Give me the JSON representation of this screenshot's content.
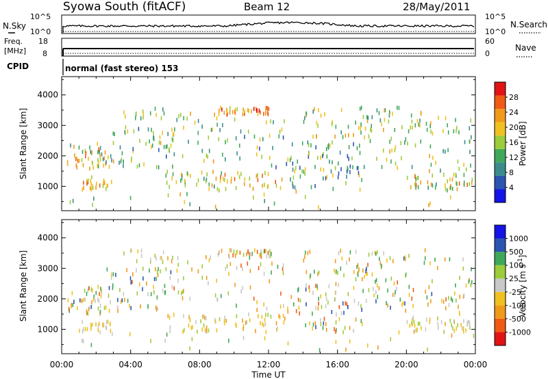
{
  "header": {
    "station": "Syowa South (fitACF)",
    "beam": "Beam 12",
    "date": "28/May/2011"
  },
  "noise_panel": {
    "left_label": "N.Sky",
    "right_label": "N.Search",
    "tick_top": "10^5",
    "tick_bottom": "10^0"
  },
  "freq_panel": {
    "left_label_1": "Freq.",
    "left_label_2": "[MHz]",
    "right_label": "Nave",
    "left_ticks": [
      "18",
      "8"
    ],
    "right_ticks": [
      "60",
      "0"
    ]
  },
  "cpid": {
    "label": "CPID",
    "text": "normal (fast stereo) 153"
  },
  "colors": {
    "power": [
      "#1414e6",
      "#2b55b0",
      "#3a8c8c",
      "#3fa85a",
      "#9ccc3a",
      "#f0c020",
      "#f09a1a",
      "#f05a14",
      "#e01414"
    ],
    "velocity": [
      "#e01414",
      "#f05a14",
      "#f09a1a",
      "#f0c020",
      "#c8c8c8",
      "#9ccc3a",
      "#3fa85a",
      "#2b55b0",
      "#1414e6"
    ]
  },
  "chart_data": [
    {
      "type": "heatmap",
      "name": "power",
      "ylabel": "Slant Range [km]",
      "ylim": [
        200,
        4600
      ],
      "y_ticks": [
        "1000",
        "2000",
        "3000",
        "4000"
      ],
      "xlim_hours": [
        0,
        24
      ],
      "cbar_label": "Power [dB]",
      "cbar_range": [
        0,
        32
      ],
      "cbar_ticks": [
        "4",
        "8",
        "12",
        "16",
        "20",
        "24",
        "28"
      ],
      "clusters": [
        {
          "t": [
            0.3,
            2.5
          ],
          "r": [
            1500,
            2400
          ],
          "v": [
            8,
            28
          ],
          "n": 45
        },
        {
          "t": [
            1.0,
            3.0
          ],
          "r": [
            900,
            1300
          ],
          "v": [
            14,
            26
          ],
          "n": 25
        },
        {
          "t": [
            2.5,
            6.5
          ],
          "r": [
            1600,
            3000
          ],
          "v": [
            6,
            22
          ],
          "n": 60
        },
        {
          "t": [
            3.5,
            6.0
          ],
          "r": [
            3200,
            3600
          ],
          "v": [
            8,
            20
          ],
          "n": 15
        },
        {
          "t": [
            6.0,
            9.0
          ],
          "r": [
            900,
            1500
          ],
          "v": [
            10,
            24
          ],
          "n": 30
        },
        {
          "t": [
            6.0,
            9.0
          ],
          "r": [
            1800,
            3400
          ],
          "v": [
            6,
            22
          ],
          "n": 30
        },
        {
          "t": [
            8.8,
            12.2
          ],
          "r": [
            3350,
            3600
          ],
          "v": [
            16,
            30
          ],
          "n": 40
        },
        {
          "t": [
            9.0,
            13.0
          ],
          "r": [
            900,
            1500
          ],
          "v": [
            14,
            28
          ],
          "n": 35
        },
        {
          "t": [
            9.0,
            13.0
          ],
          "r": [
            1600,
            3200
          ],
          "v": [
            6,
            20
          ],
          "n": 35
        },
        {
          "t": [
            13.0,
            17.5
          ],
          "r": [
            900,
            2500
          ],
          "v": [
            4,
            20
          ],
          "n": 80
        },
        {
          "t": [
            14.0,
            18.0
          ],
          "r": [
            2600,
            3600
          ],
          "v": [
            10,
            24
          ],
          "n": 40
        },
        {
          "t": [
            17.5,
            21.5
          ],
          "r": [
            1600,
            3600
          ],
          "v": [
            8,
            22
          ],
          "n": 60
        },
        {
          "t": [
            20.0,
            23.8
          ],
          "r": [
            900,
            1400
          ],
          "v": [
            10,
            26
          ],
          "n": 45
        },
        {
          "t": [
            21.0,
            23.8
          ],
          "r": [
            1500,
            3300
          ],
          "v": [
            8,
            24
          ],
          "n": 35
        },
        {
          "t": [
            0.0,
            24.0
          ],
          "r": [
            300,
            900
          ],
          "v": [
            8,
            24
          ],
          "n": 25
        }
      ]
    },
    {
      "type": "heatmap",
      "name": "velocity",
      "ylabel": "Slant Range [km]",
      "ylim": [
        200,
        4600
      ],
      "y_ticks": [
        "1000",
        "2000",
        "3000",
        "4000"
      ],
      "xlabel": "Time UT",
      "x_ticks": [
        "00:00",
        "04:00",
        "08:00",
        "12:00",
        "16:00",
        "20:00",
        "00:00"
      ],
      "xlim_hours": [
        0,
        24
      ],
      "cbar_label": "Velocity",
      "cbar_unit": "[m s",
      "cbar_exp": "-1",
      "cbar_unit_end": "]",
      "cbar_range": [
        -1200,
        1200
      ],
      "cbar_ticks": [
        "-1000",
        "-500",
        "-100",
        "-25",
        "25",
        "100",
        "500",
        "1000"
      ],
      "clusters": [
        {
          "t": [
            0.3,
            2.5
          ],
          "r": [
            1500,
            2400
          ],
          "v": [
            -800,
            800
          ],
          "n": 45
        },
        {
          "t": [
            1.0,
            3.0
          ],
          "r": [
            900,
            1300
          ],
          "v": [
            -400,
            100
          ],
          "n": 25
        },
        {
          "t": [
            2.5,
            6.5
          ],
          "r": [
            1600,
            3000
          ],
          "v": [
            -700,
            900
          ],
          "n": 60
        },
        {
          "t": [
            3.5,
            6.0
          ],
          "r": [
            3200,
            3600
          ],
          "v": [
            -300,
            300
          ],
          "n": 15
        },
        {
          "t": [
            6.0,
            9.0
          ],
          "r": [
            900,
            1500
          ],
          "v": [
            -500,
            200
          ],
          "n": 30
        },
        {
          "t": [
            6.0,
            9.0
          ],
          "r": [
            1800,
            3400
          ],
          "v": [
            -600,
            400
          ],
          "n": 30
        },
        {
          "t": [
            8.8,
            12.2
          ],
          "r": [
            3350,
            3600
          ],
          "v": [
            -900,
            600
          ],
          "n": 40
        },
        {
          "t": [
            9.0,
            13.0
          ],
          "r": [
            900,
            1500
          ],
          "v": [
            -600,
            200
          ],
          "n": 35
        },
        {
          "t": [
            9.0,
            13.0
          ],
          "r": [
            1600,
            3200
          ],
          "v": [
            -800,
            500
          ],
          "n": 35
        },
        {
          "t": [
            13.0,
            17.5
          ],
          "r": [
            900,
            2500
          ],
          "v": [
            -900,
            900
          ],
          "n": 80
        },
        {
          "t": [
            14.0,
            18.0
          ],
          "r": [
            2600,
            3600
          ],
          "v": [
            -700,
            600
          ],
          "n": 40
        },
        {
          "t": [
            17.5,
            21.5
          ],
          "r": [
            1600,
            3600
          ],
          "v": [
            -800,
            800
          ],
          "n": 60
        },
        {
          "t": [
            20.0,
            23.8
          ],
          "r": [
            900,
            1400
          ],
          "v": [
            -500,
            300
          ],
          "n": 45
        },
        {
          "t": [
            21.0,
            23.8
          ],
          "r": [
            1500,
            3300
          ],
          "v": [
            -700,
            700
          ],
          "n": 35
        },
        {
          "t": [
            0.0,
            24.0
          ],
          "r": [
            300,
            900
          ],
          "v": [
            -500,
            500
          ],
          "n": 25
        }
      ]
    }
  ]
}
